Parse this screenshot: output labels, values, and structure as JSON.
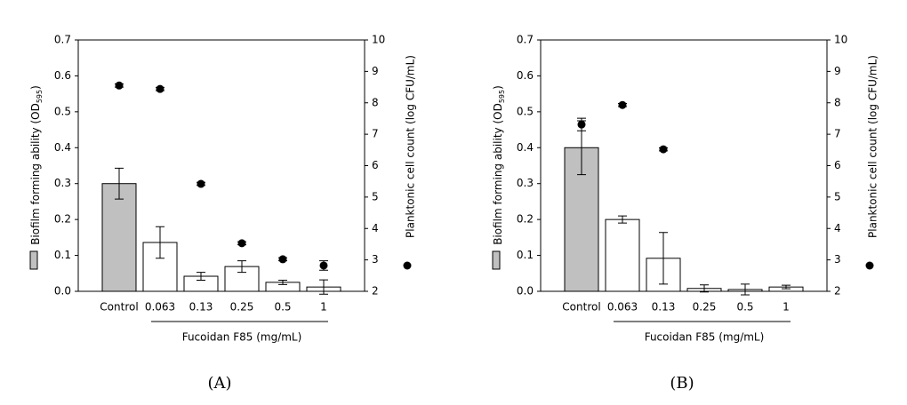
{
  "chart_data": [
    {
      "type": "bar",
      "panel_label": "(A)",
      "categories": [
        "Control",
        "0.063",
        "0.13",
        "0.25",
        "0.5",
        "1"
      ],
      "xlabel": "Fucoidan F85 (mg/mL)",
      "ylabel": {
        "main": "Biofilm forming ability (OD",
        "sub": "595",
        "end": ")"
      },
      "y2label": "Planktonic cell count (log CFU/mL)",
      "ylim": [
        0,
        0.7
      ],
      "yticks": [
        {
          "value": 0,
          "label": "0.0"
        },
        0.1,
        0.2,
        0.3,
        0.4,
        0.5,
        0.6,
        0.7
      ],
      "y2lim": [
        2,
        10
      ],
      "y2ticks": [
        2,
        3,
        4,
        5,
        6,
        7,
        8,
        9,
        10
      ],
      "series": [
        {
          "kind": "bar",
          "colors": [
            "#c0c0c0",
            "#ffffff",
            "#ffffff",
            "#ffffff",
            "#ffffff",
            "#ffffff"
          ],
          "values": [
            0.3,
            0.136,
            0.042,
            0.069,
            0.025,
            0.012
          ],
          "errors": [
            0.043,
            0.044,
            0.011,
            0.016,
            0.006,
            0.02
          ]
        },
        {
          "kind": "scatter",
          "axis": "y2",
          "color": "#000000",
          "values": [
            8.55,
            8.44,
            5.42,
            3.53,
            3.02,
            2.82
          ],
          "errors": [
            0.05,
            0.05,
            0.05,
            0.05,
            0.05,
            0.15
          ]
        }
      ]
    },
    {
      "type": "bar",
      "panel_label": "(B)",
      "categories": [
        "Control",
        "0.063",
        "0.13",
        "0.25",
        "0.5",
        "1"
      ],
      "xlabel": "Fucoidan F85 (mg/mL)",
      "ylabel": {
        "main": "Biofilm forming ability (OD",
        "sub": "595",
        "end": ")"
      },
      "y2label": "Planktonic cell count (log CFU/mL)",
      "ylim": [
        0,
        0.7
      ],
      "yticks": [
        {
          "value": 0,
          "label": "0.0"
        },
        0.1,
        0.2,
        0.3,
        0.4,
        0.5,
        0.6,
        0.7
      ],
      "y2lim": [
        2,
        10
      ],
      "y2ticks": [
        2,
        3,
        4,
        5,
        6,
        7,
        8,
        9,
        10
      ],
      "series": [
        {
          "kind": "bar",
          "colors": [
            "#c0c0c0",
            "#ffffff",
            "#ffffff",
            "#ffffff",
            "#ffffff",
            "#ffffff"
          ],
          "values": [
            0.4,
            0.2,
            0.092,
            0.008,
            0.005,
            0.012
          ],
          "errors": [
            0.075,
            0.01,
            0.072,
            0.01,
            0.015,
            0.005
          ]
        },
        {
          "kind": "scatter",
          "axis": "y2",
          "color": "#000000",
          "values": [
            7.31,
            7.93,
            6.52,
            null,
            null,
            null
          ],
          "errors": [
            0.2,
            0.05,
            0.05,
            null,
            null,
            null
          ]
        }
      ]
    }
  ]
}
